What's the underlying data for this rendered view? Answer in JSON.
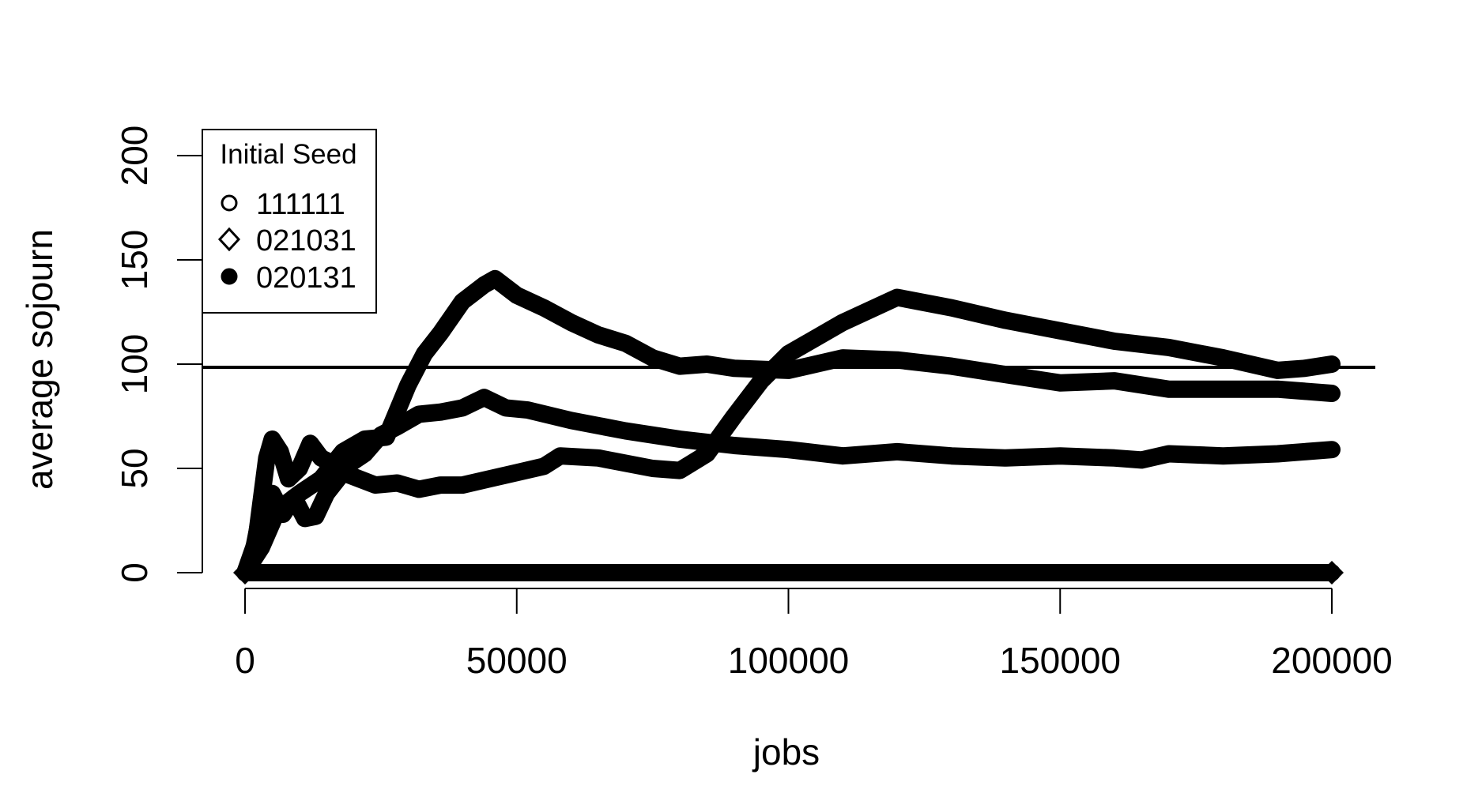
{
  "chart_data": {
    "type": "line",
    "title": "",
    "xlabel": "jobs",
    "ylabel": "average sojourn",
    "xlim": [
      0,
      200000
    ],
    "ylim": [
      0,
      200
    ],
    "x_ticks": [
      0,
      50000,
      100000,
      150000,
      200000
    ],
    "y_ticks": [
      0,
      50,
      100,
      150,
      200
    ],
    "reference_line_y": 98.5,
    "grid": false,
    "legend": {
      "title": "Initial Seed",
      "placement": "top-left",
      "entries": [
        {
          "label": "111111",
          "marker": "circle-open"
        },
        {
          "label": "021031",
          "marker": "diamond-open"
        },
        {
          "label": "020131",
          "marker": "circle-filled"
        }
      ]
    },
    "series": [
      {
        "points": [
          [
            0,
            0
          ],
          [
            2000,
            15
          ],
          [
            4000,
            55
          ],
          [
            5000,
            64
          ],
          [
            6500,
            58
          ],
          [
            8000,
            45
          ],
          [
            10000,
            50
          ],
          [
            12000,
            62
          ],
          [
            14000,
            55
          ],
          [
            18000,
            50
          ],
          [
            22000,
            57
          ],
          [
            25000,
            66
          ],
          [
            28000,
            70
          ],
          [
            32000,
            76
          ],
          [
            36000,
            77
          ],
          [
            40000,
            79
          ],
          [
            44000,
            84
          ],
          [
            48000,
            79
          ],
          [
            52000,
            78
          ],
          [
            60000,
            73
          ],
          [
            70000,
            68
          ],
          [
            80000,
            64
          ],
          [
            90000,
            61
          ],
          [
            100000,
            59
          ],
          [
            110000,
            56
          ],
          [
            120000,
            58
          ],
          [
            130000,
            56
          ],
          [
            140000,
            55
          ],
          [
            150000,
            56
          ],
          [
            160000,
            55
          ],
          [
            165000,
            54
          ],
          [
            170000,
            57
          ],
          [
            180000,
            56
          ],
          [
            190000,
            57
          ],
          [
            200000,
            59
          ]
        ]
      },
      {
        "points": [
          [
            0,
            0
          ],
          [
            1500,
            10
          ],
          [
            3000,
            30
          ],
          [
            5000,
            38
          ],
          [
            7000,
            28
          ],
          [
            9000,
            36
          ],
          [
            11000,
            26
          ],
          [
            13000,
            27
          ],
          [
            15000,
            38
          ],
          [
            18000,
            48
          ],
          [
            21000,
            45
          ],
          [
            24000,
            42
          ],
          [
            28000,
            43
          ],
          [
            32000,
            40
          ],
          [
            36000,
            42
          ],
          [
            40000,
            42
          ],
          [
            45000,
            45
          ],
          [
            50000,
            48
          ],
          [
            55000,
            51
          ],
          [
            58000,
            56
          ],
          [
            65000,
            55
          ],
          [
            75000,
            50
          ],
          [
            80000,
            49
          ],
          [
            85000,
            57
          ],
          [
            90000,
            75
          ],
          [
            95000,
            92
          ],
          [
            100000,
            105
          ],
          [
            110000,
            120
          ],
          [
            120000,
            132
          ],
          [
            130000,
            127
          ],
          [
            140000,
            121
          ],
          [
            150000,
            116
          ],
          [
            160000,
            111
          ],
          [
            170000,
            108
          ],
          [
            180000,
            103
          ],
          [
            190000,
            97
          ],
          [
            195000,
            98
          ],
          [
            200000,
            100
          ]
        ]
      },
      {
        "points": [
          [
            0,
            0
          ],
          [
            3000,
            12
          ],
          [
            6000,
            30
          ],
          [
            10000,
            38
          ],
          [
            14000,
            45
          ],
          [
            18000,
            58
          ],
          [
            22000,
            64
          ],
          [
            26000,
            65
          ],
          [
            30000,
            90
          ],
          [
            33000,
            105
          ],
          [
            36000,
            115
          ],
          [
            40000,
            130
          ],
          [
            44000,
            138
          ],
          [
            46000,
            141
          ],
          [
            50000,
            133
          ],
          [
            55000,
            127
          ],
          [
            60000,
            120
          ],
          [
            65000,
            114
          ],
          [
            70000,
            110
          ],
          [
            75000,
            103
          ],
          [
            80000,
            99
          ],
          [
            85000,
            100
          ],
          [
            90000,
            98
          ],
          [
            100000,
            97
          ],
          [
            110000,
            103
          ],
          [
            120000,
            102
          ],
          [
            130000,
            99
          ],
          [
            140000,
            95
          ],
          [
            150000,
            91
          ],
          [
            160000,
            92
          ],
          [
            170000,
            88
          ],
          [
            180000,
            88
          ],
          [
            190000,
            88
          ],
          [
            200000,
            86
          ]
        ]
      },
      {
        "points": [
          [
            0,
            0
          ],
          [
            50000,
            0
          ],
          [
            100000,
            0
          ],
          [
            150000,
            0
          ],
          [
            200000,
            0
          ]
        ]
      }
    ]
  }
}
